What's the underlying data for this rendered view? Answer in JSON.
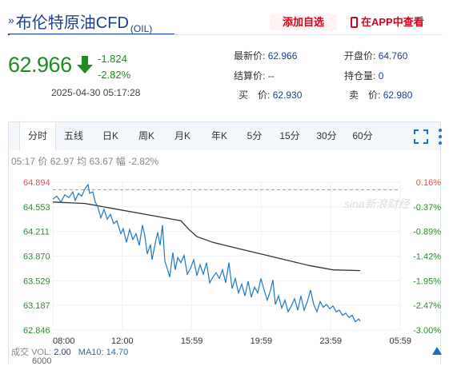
{
  "header": {
    "arrows": "»",
    "title": "布伦特原油CFD",
    "code": "(OIL)",
    "add_watchlist": "添加自选",
    "view_in_app": "在APP中查看"
  },
  "quote": {
    "price": "62.966",
    "change": "-1.824",
    "change_pct": "-2.82%",
    "timestamp": "2025-04-30 05:17:28"
  },
  "stats": {
    "latest_label": "最新价:",
    "latest": "62.966",
    "open_label": "开盘价:",
    "open": "64.760",
    "settle_label": "结算价:",
    "settle": "--",
    "position_label": "持仓量:",
    "position": "0",
    "bid_label": "买　价:",
    "bid": "62.930",
    "ask_label": "卖　价:",
    "ask": "62.980"
  },
  "tabs": [
    "分时",
    "五线",
    "日K",
    "周K",
    "月K",
    "年K",
    "5分",
    "15分",
    "30分",
    "60分"
  ],
  "chart_info": {
    "time": "05:17",
    "price_label": "价",
    "price": "62.97",
    "avg_label": "均",
    "avg": "63.67",
    "amp_label": "幅",
    "amp": "-2.82%"
  },
  "volume": {
    "label": "成交",
    "vol_label": "VOL:",
    "vol": "2.00",
    "ma_label": "MA10:",
    "ma": "14.70",
    "axis_top": "6000"
  },
  "watermark": "sina新浪财经",
  "colors": {
    "price_line": "#1f77c4",
    "avg_line": "#333333",
    "down": "#1e8c1e",
    "prev_close_line": "#999999",
    "accent": "#d9001b",
    "brand": "#1b3f8f"
  },
  "chart_data": {
    "type": "line",
    "x_ticks": [
      "08:00",
      "12:00",
      "15:59",
      "19:59",
      "23:59",
      "05:59"
    ],
    "y_left_ticks": [
      "64.894",
      "64.553",
      "64.211",
      "63.870",
      "63.529",
      "63.187",
      "62.846"
    ],
    "y_right_ticks": [
      "0.16%",
      "-0.37%",
      "-0.89%",
      "-1.42%",
      "-1.95%",
      "-2.47%",
      "-3.00%"
    ],
    "ylim": [
      62.846,
      64.894
    ],
    "prev_close": 64.79,
    "series": [
      {
        "values": [
          [
            0,
            64.66
          ],
          [
            5,
            64.7
          ],
          [
            10,
            64.62
          ],
          [
            15,
            64.72
          ],
          [
            20,
            64.68
          ],
          [
            25,
            64.76
          ],
          [
            28,
            64.64
          ],
          [
            32,
            64.74
          ],
          [
            36,
            64.7
          ],
          [
            40,
            64.8
          ],
          [
            44,
            64.86
          ],
          [
            46,
            64.74
          ],
          [
            50,
            64.76
          ],
          [
            53,
            64.62
          ],
          [
            56,
            64.56
          ],
          [
            60,
            64.4
          ],
          [
            64,
            64.52
          ],
          [
            68,
            64.38
          ],
          [
            72,
            64.45
          ],
          [
            76,
            64.32
          ],
          [
            80,
            64.36
          ],
          [
            85,
            64.18
          ],
          [
            88,
            64.25
          ],
          [
            92,
            64.06
          ],
          [
            96,
            64.24
          ],
          [
            100,
            64.1
          ],
          [
            104,
            64.18
          ],
          [
            108,
            64.02
          ],
          [
            112,
            64.3
          ],
          [
            115,
            64.15
          ],
          [
            118,
            63.9
          ],
          [
            122,
            64.03
          ],
          [
            124,
            63.82
          ],
          [
            128,
            64.05
          ],
          [
            131,
            64.2
          ],
          [
            134,
            64.02
          ],
          [
            137,
            64.3
          ],
          [
            140,
            63.8
          ],
          [
            143,
            63.7
          ],
          [
            146,
            63.58
          ],
          [
            150,
            63.92
          ],
          [
            153,
            63.68
          ],
          [
            156,
            63.85
          ],
          [
            160,
            63.78
          ],
          [
            164,
            63.88
          ],
          [
            168,
            63.62
          ],
          [
            172,
            63.7
          ],
          [
            176,
            63.82
          ],
          [
            180,
            63.6
          ],
          [
            184,
            63.75
          ],
          [
            188,
            63.62
          ],
          [
            192,
            63.78
          ],
          [
            196,
            63.5
          ],
          [
            200,
            63.58
          ],
          [
            204,
            63.64
          ],
          [
            208,
            63.56
          ],
          [
            212,
            63.68
          ],
          [
            216,
            63.5
          ],
          [
            220,
            63.78
          ],
          [
            224,
            63.42
          ],
          [
            228,
            63.56
          ],
          [
            232,
            63.36
          ],
          [
            236,
            63.48
          ],
          [
            240,
            63.32
          ],
          [
            244,
            63.52
          ],
          [
            248,
            63.3
          ],
          [
            252,
            63.44
          ],
          [
            256,
            63.36
          ],
          [
            260,
            63.56
          ],
          [
            264,
            63.4
          ],
          [
            268,
            63.26
          ],
          [
            272,
            63.4
          ],
          [
            275,
            63.54
          ],
          [
            278,
            63.2
          ],
          [
            282,
            63.32
          ],
          [
            286,
            63.15
          ],
          [
            290,
            63.26
          ],
          [
            294,
            63.1
          ],
          [
            298,
            63.18
          ],
          [
            302,
            63.28
          ],
          [
            306,
            63.12
          ],
          [
            310,
            63.32
          ],
          [
            314,
            63.12
          ],
          [
            318,
            63.24
          ],
          [
            322,
            63.4
          ],
          [
            326,
            63.2
          ],
          [
            330,
            63.1
          ],
          [
            334,
            63.24
          ],
          [
            338,
            63.16
          ],
          [
            342,
            63.2
          ],
          [
            346,
            63.14
          ],
          [
            350,
            63.18
          ],
          [
            354,
            63.1
          ],
          [
            358,
            63.12
          ],
          [
            362,
            63.05
          ],
          [
            366,
            63.08
          ],
          [
            370,
            63.02
          ],
          [
            374,
            63.05
          ],
          [
            378,
            62.96
          ],
          [
            382,
            63.0
          ],
          [
            384,
            62.97
          ]
        ],
        "color": "#1f77c4"
      },
      {
        "values": [
          [
            0,
            64.62
          ],
          [
            40,
            64.6
          ],
          [
            80,
            64.52
          ],
          [
            120,
            64.44
          ],
          [
            160,
            64.36
          ],
          [
            170,
            64.24
          ],
          [
            180,
            64.14
          ],
          [
            200,
            64.06
          ],
          [
            230,
            63.98
          ],
          [
            260,
            63.9
          ],
          [
            290,
            63.82
          ],
          [
            320,
            63.74
          ],
          [
            350,
            63.68
          ],
          [
            384,
            63.67
          ]
        ],
        "color": "#333333"
      }
    ]
  }
}
